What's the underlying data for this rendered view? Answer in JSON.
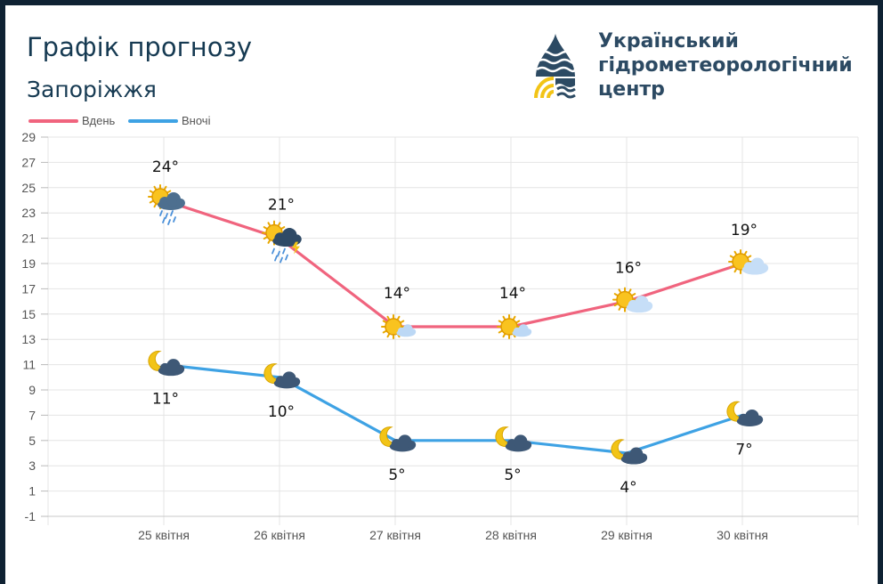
{
  "title": "Графік прогнозу",
  "city": "Запоріжжя",
  "organization": {
    "line1": "Український",
    "line2": "гідрометеорологічний",
    "line3": "центр"
  },
  "colors": {
    "day": "#f0647e",
    "night": "#3ea2e4",
    "grid": "#e4e4e4",
    "text": "#163a52"
  },
  "legend": [
    {
      "name": "Вдень",
      "color": "#f0647e"
    },
    {
      "name": "Вночі",
      "color": "#3ea2e4"
    }
  ],
  "chart_data": {
    "type": "line",
    "title": "",
    "xlabel": "",
    "ylabel": "",
    "ylim": [
      -1,
      29
    ],
    "yticks": [
      -1,
      1,
      3,
      5,
      7,
      9,
      11,
      13,
      15,
      17,
      19,
      21,
      23,
      25,
      27,
      29
    ],
    "grid": true,
    "legend_position": "top-left",
    "categories": [
      "25 квітня",
      "26 квітня",
      "27 квітня",
      "28 квітня",
      "29 квітня",
      "30 квітня"
    ],
    "series": [
      {
        "name": "Вдень",
        "values": [
          24,
          21,
          14,
          14,
          16,
          19
        ],
        "labels": [
          "24°",
          "21°",
          "14°",
          "14°",
          "16°",
          "19°"
        ],
        "icons": [
          "sun-cloud-rain-icon",
          "sun-storm-rain-icon",
          "sun-light-cloud-icon",
          "sun-light-cloud-icon",
          "sun-cloud-icon",
          "sun-cloud-icon"
        ]
      },
      {
        "name": "Вночі",
        "values": [
          11,
          10,
          5,
          5,
          4,
          7
        ],
        "labels": [
          "11°",
          "10°",
          "5°",
          "5°",
          "4°",
          "7°"
        ],
        "icons": [
          "moon-cloud-icon",
          "moon-cloud-icon",
          "moon-cloud-icon",
          "moon-cloud-icon",
          "moon-cloud-icon",
          "moon-cloud-icon"
        ]
      }
    ]
  }
}
